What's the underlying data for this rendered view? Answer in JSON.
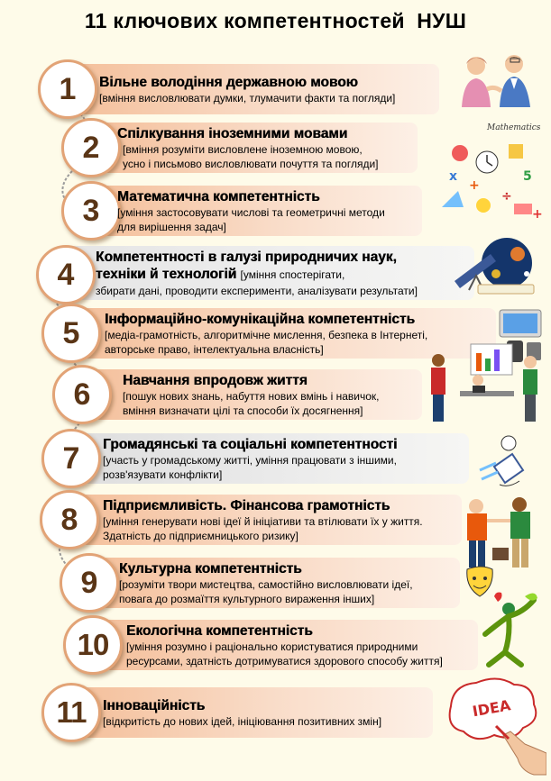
{
  "title": "11 ключових компетентностей  НУШ",
  "competences": [
    {
      "number": "1",
      "name": "Вільне володіння державною мовою",
      "description": [
        "[вміння висловлювати думки, тлумачити факти та погляди]"
      ]
    },
    {
      "number": "2",
      "name": "Спілкування іноземними мовами",
      "description": [
        "[вміння розуміти висловлене іноземною мовою,",
        "усно і письмово висловлювати почуття та погляди]"
      ]
    },
    {
      "number": "3",
      "name": "Математична компетентність",
      "description": [
        "[уміння застосовувати числові та геометричні методи",
        "для вирішення задач]"
      ]
    },
    {
      "number": "4",
      "name_line1": "Компетентності в галузі природничих наук,",
      "name_line2": "техніки й технологій",
      "description_inline": "[уміння спостерігати,",
      "description": [
        "збирати дані, проводити експерименти, аналізувати результати]"
      ]
    },
    {
      "number": "5",
      "name": "Інформаційно-комунікаційна  компетентність",
      "description": [
        "[медіа-грамотність, алгоритмічне мислення, безпека в Інтернеті,",
        "авторське право, інтелектуальна власність]"
      ]
    },
    {
      "number": "6",
      "name": "Навчання впродовж життя",
      "description": [
        "[пошук нових знань, набуття нових вмінь і навичок,",
        "вміння визначати цілі та способи їх досягнення]"
      ]
    },
    {
      "number": "7",
      "name": "Громадянські та соціальні компетентності",
      "description": [
        "[участь у громадському житті, уміння працювати з іншими,",
        "розв'язувати конфлікти]"
      ]
    },
    {
      "number": "8",
      "name": "Підприємливість. Фінансова грамотність",
      "description": [
        "[уміння генерувати нові ідеї й ініціативи та втілювати їх у життя.",
        "Здатність до підприємницького ризику]"
      ]
    },
    {
      "number": "9",
      "name": "Культурна компетентність",
      "description": [
        "[розуміти твори мистецтва, самостійно висловлювати ідеї,",
        "повага до розмаїття культурного вираження інших]"
      ]
    },
    {
      "number": "10",
      "name": "Екологічна компетентність",
      "description": [
        "[уміння розумно і раціонально користуватися природними",
        "ресурсами, здатність дотримуватися здорового способу життя]"
      ]
    },
    {
      "number": "11",
      "name": "Інноваційність",
      "description": [
        "[відкритість до нових ідей, ініціювання позитивних змін]"
      ]
    }
  ],
  "illustrations": {
    "mathematics_label": "Mathematics",
    "idea_label": "IDEA"
  },
  "colors": {
    "background": "#fefbe9",
    "circle_border": "#e2a376",
    "number": "#5a3516",
    "bar_gradient": "#f6c8a3 → #fbe8dc",
    "chain": "#9b9b9b"
  }
}
